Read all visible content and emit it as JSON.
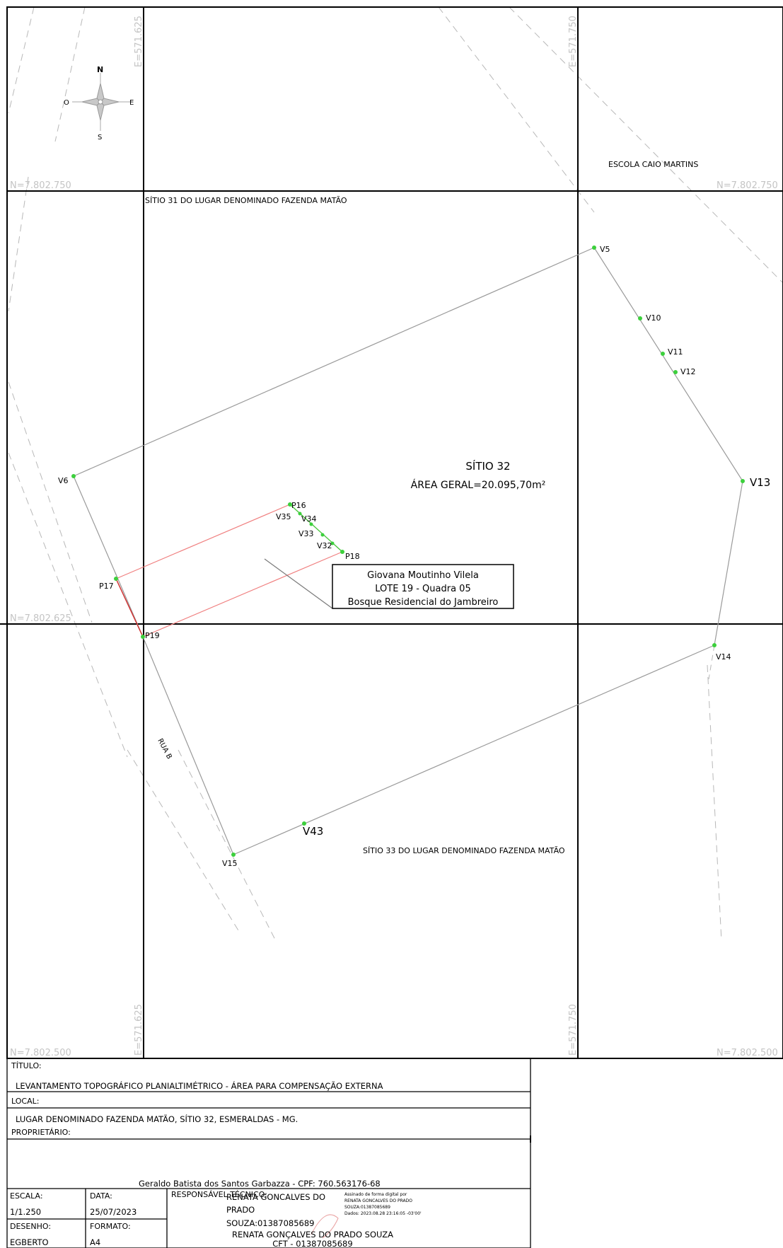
{
  "map": {
    "north_arrow": {
      "n": "N",
      "s": "S",
      "e": "E",
      "w": "O"
    },
    "grid": {
      "e_label_1": "E=571.625",
      "e_label_2": "E=571.750",
      "n_label_1": "N=7.802.750",
      "n_label_2": "N=7.802.625",
      "n_label_3": "N=7.802.500"
    },
    "neighbors": {
      "escola": "ESCOLA CAIO MARTINS",
      "sitio31": "SÍTIO 31 DO LUGAR DENOMINADO FAZENDA MATÃO",
      "sitio33": "SÍTIO 33 DO LUGAR DENOMINADO FAZENDA MATÃO",
      "rua": "RUA B"
    },
    "area": {
      "title": "SÍTIO 32",
      "total": "ÁREA GERAL=20.095,70m²"
    },
    "lot_box": {
      "line1": "Giovana Moutinho Vilela",
      "line2": "LOTE 19 - Quadra 05",
      "line3": "Bosque Residencial do Jambreiro"
    },
    "vertices": {
      "v5": "V5",
      "v10": "V10",
      "v11": "V11",
      "v12": "V12",
      "v13": "V13",
      "v14": "V14",
      "v15": "V15",
      "v43": "V43",
      "v6": "V6",
      "p16": "P16",
      "p17": "P17",
      "p18": "P18",
      "p19": "P19",
      "v32": "V32",
      "v33": "V33",
      "v34": "V34",
      "v35": "V35"
    },
    "colors": {
      "grid": "#000000",
      "boundary": "#9a9a9a",
      "lot": "#f08080",
      "vertex": "#3cd03c",
      "coord_text": "#c4c4c4"
    }
  },
  "title_block": {
    "titulo_label": "TÍTULO:",
    "titulo": "LEVANTAMENTO TOPOGRÁFICO PLANIALTIMÉTRICO - ÁREA PARA COMPENSAÇÃO EXTERNA",
    "local_label": "LOCAL:",
    "local": "LUGAR DENOMINADO FAZENDA MATÃO, SÍTIO 32, ESMERALDAS - MG.",
    "proprietario_label": "PROPRIETÁRIO:",
    "proprietario": "Geraldo Batista dos Santos Garbazza - CPF: 760.563176-68",
    "escala_label": "ESCALA:",
    "escala": "1/1.250",
    "data_label": "DATA:",
    "data": "25/07/2023",
    "desenho_label": "DESENHO:",
    "desenho": "EGBERTO",
    "formato_label": "FORMATO:",
    "formato": "A4",
    "resp_label": "RESPONSÁVEL TÉCNICO:",
    "sig_name_1": "RENATA GONCALVES DO",
    "sig_name_2": "PRADO",
    "sig_name_3": "SOUZA:01387085689",
    "sig_small_1": "Assinado de forma digital por",
    "sig_small_2": "RENATA GONCALVES DO PRADO",
    "sig_small_3": "SOUZA:01387085689",
    "sig_small_4": "Dados: 2023.08.28 23:16:05 -03'00'",
    "resp_name": "RENATA GONÇALVES DO PRADO SOUZA",
    "resp_cft": "CFT - 01387085689"
  }
}
